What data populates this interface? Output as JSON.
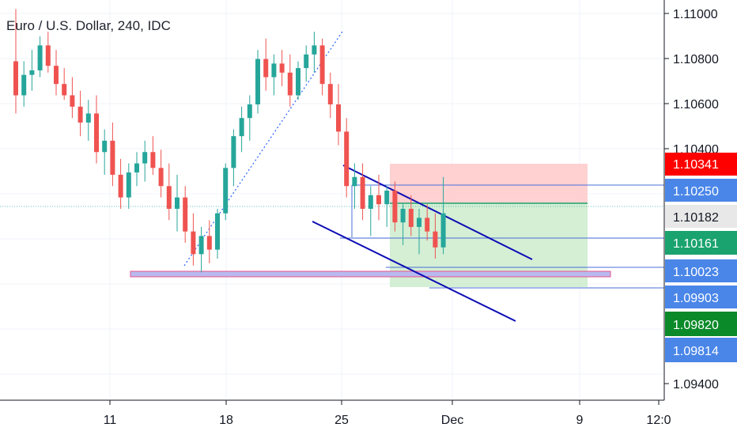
{
  "chart_data": {
    "type": "candlestick",
    "title": "Euro / U.S. Dollar, 240, IDC",
    "colors": {
      "up": "#26a69a",
      "down": "#ef5350",
      "channel": "#0d0db5",
      "stop_zone": "#ffc9c9",
      "target_zone": "#cdeccd",
      "support_zone": "#b9b9ef",
      "support_border": "#e8548b",
      "level_line": "#4a6fd8",
      "trend_line": "#2962ff",
      "badge_red": "#ff0000",
      "badge_blue": "#4a86e8",
      "badge_green": "#1aa36e",
      "badge_green_dark": "#0b8a2a",
      "badge_light": "#e8e8e8"
    },
    "y_axis": {
      "ticks": [
        "1.11000",
        "1.10800",
        "1.10600",
        "1.10400",
        "1.09400"
      ],
      "ylim": [
        1.0936,
        1.1112
      ]
    },
    "x_axis": {
      "ticks": [
        "11",
        "18",
        "25",
        "Dec",
        "9",
        "12:0"
      ]
    },
    "price_badges": [
      {
        "label": "1.10341",
        "kind": "red"
      },
      {
        "label": "1.10250",
        "kind": "blue"
      },
      {
        "label": "1.10182",
        "kind": "light"
      },
      {
        "label": "1.10161",
        "kind": "green"
      },
      {
        "label": "1.10023",
        "kind": "blue"
      },
      {
        "label": "1.09903",
        "kind": "blue"
      },
      {
        "label": "1.09820",
        "kind": "green_dark"
      },
      {
        "label": "1.09814",
        "kind": "blue"
      }
    ],
    "current_price": 1.10182,
    "ohlc": [
      [
        1.1085,
        1.1108,
        1.1062,
        1.107
      ],
      [
        1.107,
        1.1085,
        1.1065,
        1.1079
      ],
      [
        1.1079,
        1.109,
        1.1072,
        1.1081
      ],
      [
        1.1081,
        1.1096,
        1.1078,
        1.1092
      ],
      [
        1.1092,
        1.1098,
        1.108,
        1.1083
      ],
      [
        1.1083,
        1.109,
        1.107,
        1.1075
      ],
      [
        1.1075,
        1.1082,
        1.1068,
        1.107
      ],
      [
        1.107,
        1.1078,
        1.106,
        1.1065
      ],
      [
        1.1065,
        1.1072,
        1.1052,
        1.1058
      ],
      [
        1.1058,
        1.1068,
        1.105,
        1.1062
      ],
      [
        1.1062,
        1.107,
        1.104,
        1.1045
      ],
      [
        1.1045,
        1.1055,
        1.1035,
        1.105
      ],
      [
        1.105,
        1.1058,
        1.103,
        1.1035
      ],
      [
        1.1035,
        1.1042,
        1.102,
        1.1025
      ],
      [
        1.1025,
        1.104,
        1.102,
        1.1036
      ],
      [
        1.1036,
        1.1045,
        1.103,
        1.104
      ],
      [
        1.104,
        1.105,
        1.1032,
        1.1045
      ],
      [
        1.1045,
        1.1052,
        1.1035,
        1.1038
      ],
      [
        1.1038,
        1.1046,
        1.1025,
        1.103
      ],
      [
        1.103,
        1.104,
        1.1015,
        1.102
      ],
      [
        1.102,
        1.1035,
        1.101,
        1.1025
      ],
      [
        1.1025,
        1.103,
        1.1005,
        1.101
      ],
      [
        1.101,
        1.1018,
        1.0995,
        1.1
      ],
      [
        1.1,
        1.1012,
        1.0992,
        1.1008
      ],
      [
        1.1008,
        1.1015,
        1.0996,
        1.1002
      ],
      [
        1.1002,
        1.102,
        1.0998,
        1.1018
      ],
      [
        1.1018,
        1.104,
        1.1015,
        1.1038
      ],
      [
        1.1038,
        1.1055,
        1.103,
        1.1052
      ],
      [
        1.1052,
        1.1065,
        1.1045,
        1.106
      ],
      [
        1.106,
        1.107,
        1.105,
        1.1066
      ],
      [
        1.1066,
        1.109,
        1.1062,
        1.1086
      ],
      [
        1.1086,
        1.1095,
        1.1072,
        1.1078
      ],
      [
        1.1078,
        1.1088,
        1.107,
        1.1084
      ],
      [
        1.1084,
        1.109,
        1.1074,
        1.108
      ],
      [
        1.108,
        1.1088,
        1.1065,
        1.107
      ],
      [
        1.107,
        1.1085,
        1.1068,
        1.1082
      ],
      [
        1.1082,
        1.1092,
        1.1076,
        1.1088
      ],
      [
        1.1088,
        1.1098,
        1.108,
        1.1092
      ],
      [
        1.1092,
        1.1095,
        1.107,
        1.1075
      ],
      [
        1.1075,
        1.108,
        1.106,
        1.1066
      ],
      [
        1.1066,
        1.1075,
        1.1048,
        1.1054
      ],
      [
        1.1054,
        1.106,
        1.1025,
        1.103
      ],
      [
        1.103,
        1.104,
        1.102,
        1.1034
      ],
      [
        1.1034,
        1.104,
        1.1015,
        1.102
      ],
      [
        1.102,
        1.103,
        1.1008,
        1.1026
      ],
      [
        1.1026,
        1.1035,
        1.1015,
        1.1022
      ],
      [
        1.1022,
        1.103,
        1.1012,
        1.1028
      ],
      [
        1.1028,
        1.1032,
        1.101,
        1.1014
      ],
      [
        1.1014,
        1.1022,
        1.1004,
        1.102
      ],
      [
        1.102,
        1.1026,
        1.1008,
        1.1012
      ],
      [
        1.1012,
        1.102,
        1.1,
        1.1016
      ],
      [
        1.1016,
        1.1022,
        1.1006,
        1.101
      ],
      [
        1.101,
        1.1018,
        1.0998,
        1.1003
      ],
      [
        1.1003,
        1.1034,
        1.1,
        1.1018
      ]
    ]
  }
}
